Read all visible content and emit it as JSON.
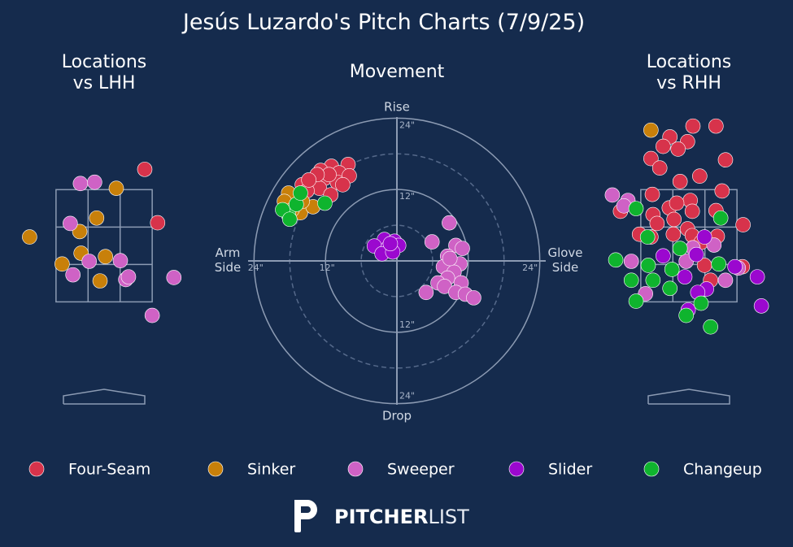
{
  "title": "Jesús Luzardo's Pitch Charts (7/9/25)",
  "logo": {
    "bold": "PITCHER",
    "light": "LIST"
  },
  "chart_data": [
    {
      "type": "scatter",
      "title": "Locations\nvs LHH",
      "xlim": [
        -1.4,
        1.4
      ],
      "ylim": [
        0,
        4.4
      ],
      "zone_x": [
        -0.71,
        0.71
      ],
      "zone_z": [
        1.57,
        3.23
      ],
      "series": [
        {
          "color": "#d7334b",
          "x": [
            0.6,
            0.79
          ],
          "values": [
            3.53,
            2.74
          ]
        },
        {
          "color": "#c8800a",
          "x": [
            0.18,
            -0.11,
            -0.36,
            -1.1,
            -0.34,
            -0.62,
            0.02,
            -0.06
          ],
          "values": [
            3.25,
            2.81,
            2.61,
            2.53,
            2.29,
            2.13,
            2.24,
            1.88
          ]
        },
        {
          "color": "#cf62c5",
          "x": [
            -0.35,
            -0.14,
            -0.5,
            -0.22,
            0.24,
            -0.46,
            0.32,
            0.36,
            1.03,
            0.71
          ],
          "values": [
            3.32,
            3.34,
            2.73,
            2.17,
            2.18,
            1.97,
            1.9,
            1.94,
            1.93,
            1.37
          ]
        },
        {
          "color": "#9b08cf",
          "x": [],
          "values": []
        },
        {
          "color": "#0fb42e",
          "x": [],
          "values": []
        }
      ]
    },
    {
      "type": "movement",
      "title": "Movement",
      "xlim": [
        -25,
        25
      ],
      "ylim": [
        -25,
        25
      ],
      "rticks": [
        {
          "value": 12,
          "label": "12\""
        },
        {
          "value": 24,
          "label": "24\""
        }
      ],
      "minor_rticks": [
        6,
        18
      ],
      "top_label": "Rise",
      "bottom_label": "Drop",
      "left_label": "Arm\nSide",
      "right_label": "Glove\nSide",
      "series": [
        {
          "name": "Four-Seam",
          "color": "#d7334b",
          "x": [
            -11.0,
            -8.2,
            -12.8,
            -9.7,
            -8.0,
            -12.1,
            -14.1,
            -15.9,
            -10.0,
            -13.0,
            -15.1,
            -11.1,
            -9.1,
            -11.4,
            -13.4,
            -14.8
          ],
          "values": [
            15.9,
            16.2,
            15.2,
            14.8,
            14.3,
            13.9,
            13.2,
            12.8,
            13.2,
            12.2,
            11.8,
            11.1,
            12.8,
            14.5,
            14.5,
            13.6
          ]
        },
        {
          "name": "Sinker",
          "color": "#c8800a",
          "x": [
            -18.2,
            -18.9,
            -16.2,
            -14.1,
            -15.9,
            -17.6
          ],
          "values": [
            11.4,
            10.0,
            8.1,
            9.1,
            10.0,
            8.6
          ]
        },
        {
          "name": "Sweeper",
          "color": "#cf62c5",
          "x": [
            8.8,
            5.9,
            9.9,
            11.0,
            8.5,
            10.6,
            7.8,
            9.6,
            8.5,
            6.9,
            8.0,
            10.8,
            9.9,
            11.5,
            12.9,
            4.9,
            8.9
          ],
          "values": [
            6.4,
            3.2,
            2.6,
            2.1,
            0.8,
            -0.5,
            -1.0,
            -1.9,
            -2.9,
            -3.7,
            -4.3,
            -3.7,
            -5.3,
            -5.6,
            -6.2,
            -5.3,
            0.4
          ]
        },
        {
          "name": "Slider",
          "color": "#9b08cf",
          "x": [
            -2.1,
            -0.4,
            -3.8,
            -1.5,
            0.3,
            -2.5,
            -0.7,
            -1.1
          ],
          "values": [
            3.6,
            3.3,
            2.5,
            2.2,
            2.6,
            1.2,
            1.5,
            2.9
          ]
        },
        {
          "name": "Changeup",
          "color": "#0fb42e",
          "x": [
            -18.2,
            -19.2,
            -16.9,
            -12.1,
            -16.2,
            -18.0
          ],
          "values": [
            7.7,
            8.6,
            9.5,
            9.7,
            11.4,
            7.0
          ]
        }
      ]
    },
    {
      "type": "scatter",
      "title": "Locations\nvs RHH",
      "xlim": [
        -1.4,
        1.4
      ],
      "ylim": [
        0,
        4.4
      ],
      "zone_x": [
        -0.71,
        0.71
      ],
      "zone_z": [
        1.57,
        3.23
      ],
      "series": [
        {
          "color": "#d7334b",
          "x": [
            0.06,
            0.4,
            -0.28,
            -0.02,
            -0.38,
            -0.16,
            -0.56,
            -0.43,
            0.54,
            -0.13,
            0.16,
            -0.54,
            0.49,
            0.02,
            -0.29,
            -0.18,
            0.05,
            0.4,
            -1.01,
            -0.53,
            -0.22,
            -0.47,
            -0.02,
            -0.23,
            0.05,
            -0.73,
            -0.56,
            0.8,
            0.42,
            0.18,
            0.23,
            0.32,
            0.79
          ],
          "values": [
            4.17,
            4.17,
            4.01,
            3.94,
            3.87,
            3.83,
            3.69,
            3.55,
            3.67,
            3.35,
            3.43,
            3.16,
            3.21,
            3.07,
            2.96,
            3.03,
            2.91,
            2.92,
            2.91,
            2.86,
            2.79,
            2.73,
            2.65,
            2.57,
            2.55,
            2.57,
            2.53,
            2.71,
            2.54,
            2.45,
            2.11,
            1.89,
            2.09
          ]
        },
        {
          "color": "#c8800a",
          "x": [
            -0.56
          ],
          "values": [
            4.11
          ]
        },
        {
          "color": "#cf62c5",
          "x": [
            -1.13,
            -0.9,
            -0.96,
            0.06,
            0.37,
            -0.85,
            -0.04,
            0.54,
            -0.64,
            0.73
          ],
          "values": [
            3.15,
            3.07,
            2.99,
            2.37,
            2.41,
            2.17,
            2.17,
            1.89,
            1.69,
            2.07
          ]
        },
        {
          "color": "#9b08cf",
          "x": [
            0.23,
            -0.38,
            0.11,
            -0.06,
            0.26,
            0.13,
            -0.01,
            1.01,
            1.07,
            0.68
          ],
          "values": [
            2.53,
            2.25,
            2.27,
            1.94,
            1.76,
            1.71,
            1.45,
            1.94,
            1.51,
            2.09
          ]
        },
        {
          "color": "#0fb42e",
          "x": [
            -0.78,
            0.47,
            -0.61,
            -1.08,
            -0.6,
            -0.25,
            -0.13,
            0.44,
            -0.85,
            -0.53,
            -0.28,
            -0.78,
            0.18,
            -0.04,
            0.32
          ],
          "values": [
            2.95,
            2.81,
            2.53,
            2.19,
            2.11,
            2.05,
            2.36,
            2.13,
            1.89,
            1.89,
            1.77,
            1.58,
            1.55,
            1.37,
            1.2
          ]
        }
      ]
    }
  ]
}
